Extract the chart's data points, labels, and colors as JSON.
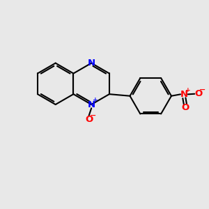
{
  "bg_color": "#e8e8e8",
  "bond_color": "#000000",
  "bond_width": 1.5,
  "n_color": "#0000ff",
  "o_color": "#ff0000",
  "font_size_atom": 9.5,
  "fig_bg": "#e8e8e8",
  "xlim": [
    0,
    10
  ],
  "ylim": [
    0,
    10
  ]
}
